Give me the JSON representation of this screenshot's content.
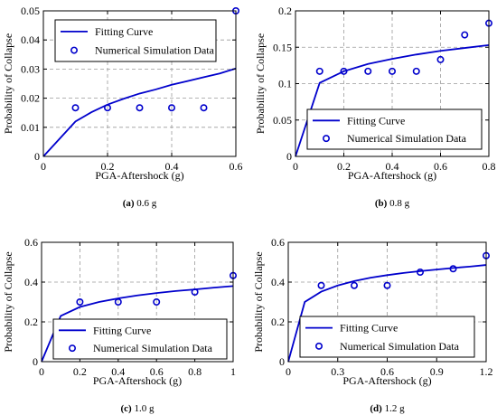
{
  "chart_data": [
    {
      "type": "line",
      "caption_letter": "(a)",
      "caption_text": " 0.6 g",
      "xlabel": "PGA-Aftershock (g)",
      "ylabel": "Probability of Collapse",
      "xlim": [
        0,
        0.6
      ],
      "ylim": [
        0,
        0.05
      ],
      "xticks": [
        0,
        0.2,
        0.4,
        0.6
      ],
      "xtick_labels": [
        "0",
        "0.2",
        "0.4",
        "0.6"
      ],
      "yticks": [
        0,
        0.01,
        0.02,
        0.03,
        0.04,
        0.05
      ],
      "ytick_labels": [
        "0",
        "0.01",
        "0.02",
        "0.03",
        "0.04",
        "0.05"
      ],
      "grid": true,
      "legend_position": "top",
      "series": [
        {
          "name": "Fitting Curve",
          "kind": "line",
          "color": "#0000cc",
          "x": [
            0,
            0.1,
            0.15,
            0.2,
            0.25,
            0.3,
            0.35,
            0.4,
            0.45,
            0.5,
            0.55,
            0.6
          ],
          "y": [
            0,
            0.012,
            0.0152,
            0.0178,
            0.0198,
            0.0216,
            0.023,
            0.0246,
            0.0259,
            0.0272,
            0.0285,
            0.0302
          ]
        },
        {
          "name": "Numerical Simulation Data",
          "kind": "scatter",
          "color": "#0000cc",
          "x": [
            0.1,
            0.2,
            0.3,
            0.4,
            0.5,
            0.6
          ],
          "y": [
            0.0167,
            0.0167,
            0.0167,
            0.0167,
            0.0167,
            0.05
          ]
        }
      ]
    },
    {
      "type": "line",
      "caption_letter": "(b)",
      "caption_text": " 0.8 g",
      "xlabel": "PGA-Aftershock (g)",
      "ylabel": "Probability of Collapse",
      "xlim": [
        0,
        0.8
      ],
      "ylim": [
        0,
        0.2
      ],
      "xticks": [
        0,
        0.2,
        0.4,
        0.6,
        0.8
      ],
      "xtick_labels": [
        "0",
        "0.2",
        "0.4",
        "0.6",
        "0.8"
      ],
      "yticks": [
        0,
        0.05,
        0.1,
        0.15,
        0.2
      ],
      "ytick_labels": [
        "0",
        "0.05",
        "0.1",
        "0.15",
        "0.2"
      ],
      "grid": true,
      "legend_position": "bottom",
      "series": [
        {
          "name": "Fitting Curve",
          "kind": "line",
          "color": "#0000cc",
          "x": [
            0,
            0.1,
            0.2,
            0.3,
            0.4,
            0.5,
            0.6,
            0.7,
            0.8
          ],
          "y": [
            0,
            0.101,
            0.117,
            0.127,
            0.134,
            0.14,
            0.145,
            0.149,
            0.153
          ]
        },
        {
          "name": "Numerical Simulation Data",
          "kind": "scatter",
          "color": "#0000cc",
          "x": [
            0.1,
            0.2,
            0.3,
            0.4,
            0.5,
            0.6,
            0.7,
            0.8
          ],
          "y": [
            0.117,
            0.117,
            0.117,
            0.117,
            0.117,
            0.133,
            0.167,
            0.183
          ]
        }
      ]
    },
    {
      "type": "line",
      "caption_letter": "(c)",
      "caption_text": " 1.0 g",
      "xlabel": "PGA-Aftershock (g)",
      "ylabel": "Probability of Collapse",
      "xlim": [
        0,
        1
      ],
      "ylim": [
        0,
        0.6
      ],
      "xticks": [
        0,
        0.2,
        0.4,
        0.6,
        0.8,
        1
      ],
      "xtick_labels": [
        "0",
        "0.2",
        "0.4",
        "0.6",
        "0.8",
        "1"
      ],
      "yticks": [
        0,
        0.2,
        0.4,
        0.6
      ],
      "ytick_labels": [
        "0",
        "0.2",
        "0.4",
        "0.6"
      ],
      "grid": true,
      "legend_position": "bottom",
      "series": [
        {
          "name": "Fitting Curve",
          "kind": "line",
          "color": "#0000cc",
          "x": [
            0,
            0.1,
            0.2,
            0.3,
            0.4,
            0.5,
            0.6,
            0.7,
            0.8,
            0.9,
            1.0
          ],
          "y": [
            0,
            0.23,
            0.275,
            0.3,
            0.318,
            0.333,
            0.345,
            0.355,
            0.363,
            0.372,
            0.38
          ]
        },
        {
          "name": "Numerical Simulation Data",
          "kind": "scatter",
          "color": "#0000cc",
          "x": [
            0.2,
            0.4,
            0.6,
            0.8,
            1.0
          ],
          "y": [
            0.3,
            0.3,
            0.3,
            0.35,
            0.433
          ]
        }
      ]
    },
    {
      "type": "line",
      "caption_letter": "(d)",
      "caption_text": " 1.2 g",
      "xlabel": "PGA-Aftershock (g)",
      "ylabel": "Probability of Collapse",
      "xlim": [
        0,
        1.2
      ],
      "ylim": [
        0,
        0.6
      ],
      "xticks": [
        0,
        0.3,
        0.6,
        0.9,
        1.2
      ],
      "xtick_labels": [
        "0",
        "0.3",
        "0.6",
        "0.9",
        "1.2"
      ],
      "yticks": [
        0,
        0.2,
        0.4,
        0.6
      ],
      "ytick_labels": [
        "0",
        "0.2",
        "0.4",
        "0.6"
      ],
      "grid": true,
      "legend_position": "bottom",
      "series": [
        {
          "name": "Fitting Curve",
          "kind": "line",
          "color": "#0000cc",
          "x": [
            0,
            0.1,
            0.2,
            0.3,
            0.4,
            0.5,
            0.6,
            0.7,
            0.8,
            0.9,
            1.0,
            1.1,
            1.2
          ],
          "y": [
            0,
            0.3,
            0.352,
            0.383,
            0.405,
            0.422,
            0.435,
            0.446,
            0.455,
            0.463,
            0.471,
            0.478,
            0.486
          ]
        },
        {
          "name": "Numerical Simulation Data",
          "kind": "scatter",
          "color": "#0000cc",
          "x": [
            0.2,
            0.4,
            0.6,
            0.8,
            1.0,
            1.2
          ],
          "y": [
            0.383,
            0.383,
            0.383,
            0.45,
            0.467,
            0.533
          ]
        }
      ]
    }
  ]
}
